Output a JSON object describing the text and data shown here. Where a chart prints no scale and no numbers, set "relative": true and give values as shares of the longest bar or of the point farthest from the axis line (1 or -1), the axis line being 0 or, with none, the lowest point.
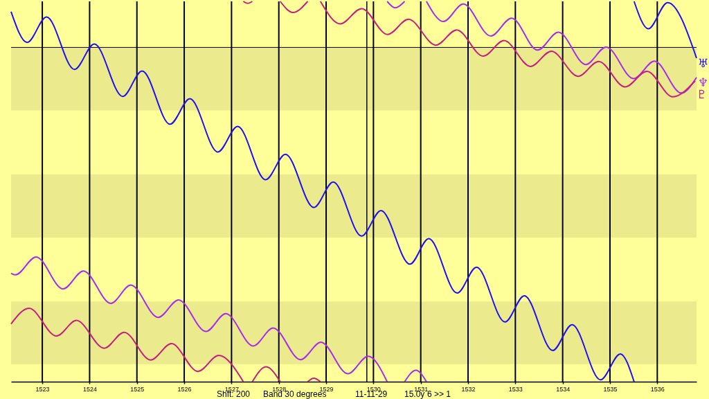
{
  "chart_data": {
    "type": "line",
    "relative": true,
    "xlim": [
      1522.34,
      1536.83
    ],
    "xticks": [
      1523,
      1524,
      1525,
      1526,
      1527,
      1528,
      1529,
      1530,
      1531,
      1532,
      1533,
      1534,
      1535,
      1536
    ],
    "grid": "x",
    "series": [
      {
        "color": "#2010f0",
        "x": [
          1522.34,
          1522.68,
          1523.09,
          1523.68,
          1524.1,
          1524.7,
          1525.11,
          1525.7,
          1526.12,
          1526.71,
          1527.13,
          1527.72,
          1528.14,
          1528.74,
          1529.15,
          1529.75,
          1530.16,
          1530.77,
          1531.17,
          1531.77,
          1532.18,
          1532.78,
          1533.19,
          1533.79,
          1534.2,
          1534.8,
          1535.22,
          1535.51
        ],
        "values": [
          0.973,
          0.892,
          0.959,
          0.821,
          0.888,
          0.75,
          0.817,
          0.677,
          0.744,
          0.604,
          0.671,
          0.531,
          0.598,
          0.458,
          0.525,
          0.383,
          0.45,
          0.309,
          0.376,
          0.233,
          0.301,
          0.157,
          0.226,
          0.082,
          0.15,
          0.005,
          0.073,
          0
        ]
      },
      {
        "name": "♅",
        "color": "#2010f0",
        "x": [
          1535.51,
          1535.81,
          1536.22,
          1536.83
        ],
        "values": [
          1,
          0.928,
          0.997,
          0.851
        ]
      },
      {
        "color": "#a82cec",
        "x": [
          1522.34,
          1522.43,
          1522.87,
          1523.44,
          1523.87,
          1524.45,
          1524.87,
          1525.45,
          1525.88,
          1526.46,
          1526.88,
          1527.46,
          1527.88,
          1528.46,
          1528.89,
          1529.46,
          1529.89,
          1530.29
        ],
        "values": [
          0.285,
          0.281,
          0.328,
          0.244,
          0.291,
          0.206,
          0.254,
          0.169,
          0.215,
          0.132,
          0.179,
          0.094,
          0.141,
          0.058,
          0.104,
          0.021,
          0.067,
          0
        ]
      },
      {
        "color": "#a82cec",
        "x": [
          1530.29,
          1530.46,
          1530.66
        ],
        "values": [
          1,
          0.983,
          1
        ]
      },
      {
        "color": "#a82cec",
        "x": [
          1530.66,
          1530.9,
          1531.12
        ],
        "values": [
          0,
          0.03,
          0
        ]
      },
      {
        "name": "♆",
        "color": "#a82cec",
        "x": [
          1531.12,
          1531.48,
          1531.9,
          1532.48,
          1532.92,
          1533.47,
          1533.91,
          1534.49,
          1534.92,
          1535.5,
          1535.94,
          1536.51,
          1536.83
        ],
        "values": [
          1,
          0.947,
          0.993,
          0.909,
          0.956,
          0.872,
          0.919,
          0.834,
          0.88,
          0.797,
          0.843,
          0.759,
          0.8
        ]
      },
      {
        "name": "♇",
        "color": "#c81e80",
        "x": [
          1528.88,
          1529.3,
          1529.75,
          1530.3,
          1530.74,
          1531.32,
          1531.76,
          1532.32,
          1532.76,
          1533.32,
          1533.76,
          1534.33,
          1534.76,
          1535.32,
          1535.78,
          1536.33,
          1536.8
        ],
        "values": [
          1,
          0.941,
          0.981,
          0.913,
          0.953,
          0.885,
          0.925,
          0.856,
          0.897,
          0.829,
          0.869,
          0.803,
          0.842,
          0.775,
          0.816,
          0.749,
          0.791
        ]
      },
      {
        "color": "#c81e80",
        "x": [
          1522.34,
          1522.72,
          1523.3,
          1523.72,
          1524.31,
          1524.73,
          1525.29,
          1525.73,
          1526.29,
          1526.73,
          1527.25
        ],
        "values": [
          0.152,
          0.193,
          0.12,
          0.161,
          0.088,
          0.13,
          0.057,
          0.1,
          0.027,
          0.069,
          0
        ]
      },
      {
        "color": "#c81e80",
        "x": [
          1527.44,
          1527.73,
          1528.03
        ],
        "values": [
          0,
          0.039,
          0
        ]
      },
      {
        "color": "#c81e80",
        "x": [
          1528.03,
          1528.3,
          1528.61
        ],
        "values": [
          1,
          0.971,
          1
        ]
      },
      {
        "color": "#c81e80",
        "x": [
          1528.61,
          1528.74,
          1528.88
        ],
        "values": [
          0,
          0.009,
          0
        ]
      },
      {
        "color": "#c81e80",
        "x": [
          1527.25,
          1527.34,
          1527.44
        ],
        "values": [
          1,
          0.995,
          1
        ]
      }
    ],
    "bands": [
      {
        "axis": "y",
        "from": 0.713,
        "to": 0.879,
        "color": "#ebeb8e"
      },
      {
        "axis": "y",
        "from": 0.379,
        "to": 0.545,
        "color": "#ebeb8e"
      },
      {
        "axis": "y",
        "from": 0.046,
        "to": 0.211,
        "color": "#ebeb8e"
      }
    ],
    "ref_lines": [
      {
        "axis": "y",
        "value": 0.879,
        "color": "#000000"
      },
      {
        "axis": "x",
        "value": 1529.86,
        "color": "#000000"
      }
    ],
    "annotations": [
      "Shft: 200",
      "Band 30 degrees",
      "11-11-29",
      "15.0y",
      "6 >> 1"
    ]
  }
}
